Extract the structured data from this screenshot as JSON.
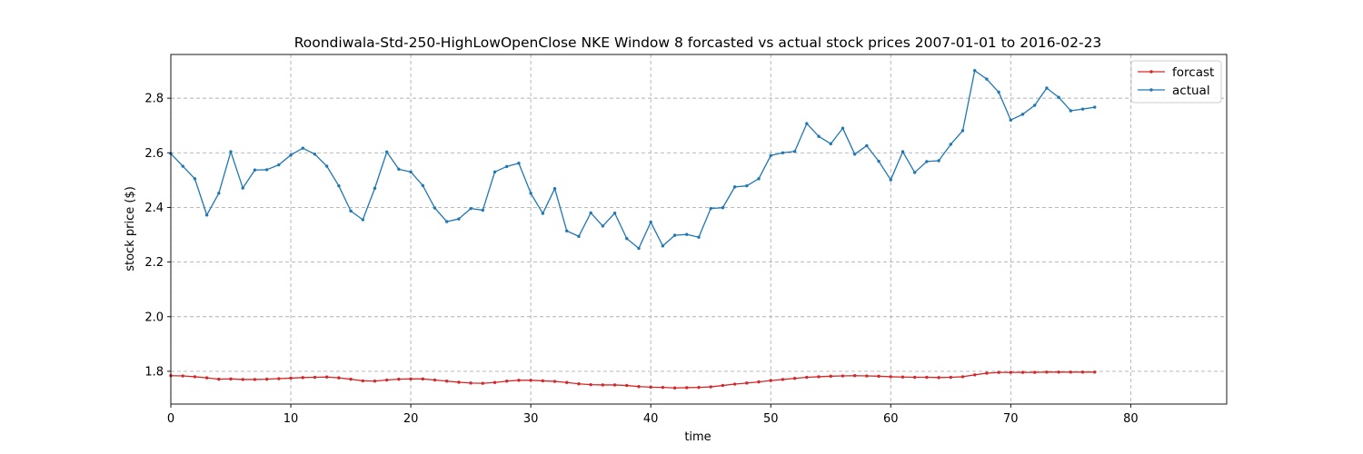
{
  "chart_data": {
    "type": "line",
    "title": "Roondiwala-Std-250-HighLowOpenClose NKE Window 8 forcasted vs actual stock prices 2007-01-01 to 2016-02-23",
    "xlabel": "time",
    "ylabel": "stock price ($)",
    "xlim": [
      0,
      88
    ],
    "ylim": [
      1.68,
      2.96
    ],
    "xticks": [
      0,
      10,
      20,
      30,
      40,
      50,
      60,
      70,
      80
    ],
    "yticks": [
      1.8,
      2.0,
      2.2,
      2.4,
      2.6,
      2.8
    ],
    "ytick_labels": [
      "1.8",
      "2.0",
      "2.2",
      "2.4",
      "2.6",
      "2.8"
    ],
    "grid": true,
    "legend_position": "top-right",
    "series": [
      {
        "name": "forcast",
        "color": "#d62728",
        "values": [
          1.784,
          1.783,
          1.78,
          1.776,
          1.771,
          1.772,
          1.77,
          1.77,
          1.771,
          1.773,
          1.775,
          1.777,
          1.778,
          1.779,
          1.776,
          1.771,
          1.765,
          1.764,
          1.768,
          1.771,
          1.772,
          1.772,
          1.768,
          1.764,
          1.76,
          1.757,
          1.756,
          1.759,
          1.764,
          1.767,
          1.767,
          1.765,
          1.763,
          1.759,
          1.754,
          1.751,
          1.75,
          1.75,
          1.748,
          1.744,
          1.742,
          1.741,
          1.739,
          1.74,
          1.741,
          1.743,
          1.748,
          1.753,
          1.757,
          1.761,
          1.766,
          1.77,
          1.774,
          1.778,
          1.78,
          1.782,
          1.783,
          1.784,
          1.783,
          1.782,
          1.78,
          1.779,
          1.778,
          1.778,
          1.777,
          1.778,
          1.78,
          1.787,
          1.793,
          1.796,
          1.796,
          1.796,
          1.796,
          1.797,
          1.797,
          1.797,
          1.797,
          1.797
        ]
      },
      {
        "name": "actual",
        "color": "#1f77b4",
        "values": [
          2.597,
          2.551,
          2.505,
          2.372,
          2.452,
          2.604,
          2.471,
          2.537,
          2.538,
          2.556,
          2.592,
          2.617,
          2.595,
          2.551,
          2.479,
          2.387,
          2.355,
          2.47,
          2.603,
          2.54,
          2.53,
          2.48,
          2.398,
          2.348,
          2.358,
          2.396,
          2.39,
          2.53,
          2.55,
          2.562,
          2.452,
          2.378,
          2.469,
          2.314,
          2.294,
          2.38,
          2.332,
          2.379,
          2.286,
          2.25,
          2.346,
          2.259,
          2.298,
          2.301,
          2.291,
          2.396,
          2.399,
          2.475,
          2.479,
          2.505,
          2.59,
          2.6,
          2.605,
          2.707,
          2.66,
          2.633,
          2.69,
          2.595,
          2.626,
          2.569,
          2.501,
          2.604,
          2.528,
          2.568,
          2.571,
          2.631,
          2.681,
          2.901,
          2.87,
          2.822,
          2.72,
          2.741,
          2.774,
          2.837,
          2.803,
          2.754,
          2.76,
          2.767
        ]
      }
    ]
  }
}
